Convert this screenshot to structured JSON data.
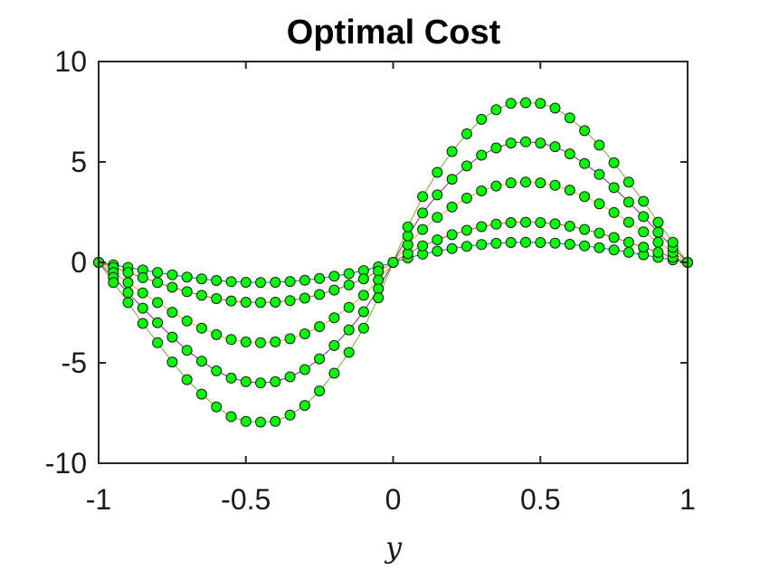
{
  "chart_data": {
    "type": "line",
    "title": "Optimal Cost",
    "xlabel": "y",
    "ylabel": "",
    "xlim": [
      -1,
      1
    ],
    "ylim": [
      -10,
      10
    ],
    "xticks": [
      -1,
      -0.5,
      0,
      0.5,
      1
    ],
    "xtick_labels": [
      "-1",
      "-0.5",
      "0",
      "0.5",
      "1"
    ],
    "yticks": [
      -10,
      -5,
      0,
      5,
      10
    ],
    "ytick_labels": [
      "-10",
      "-5",
      "0",
      "5",
      "10"
    ],
    "grid": false,
    "legend": false,
    "marker": "circle",
    "marker_fill": "#00ff00",
    "marker_edge": "#1a1a1a",
    "x": [
      -1,
      -0.95,
      -0.9,
      -0.85,
      -0.8,
      -0.75,
      -0.7,
      -0.65,
      -0.6,
      -0.55,
      -0.5,
      -0.45,
      -0.4,
      -0.35,
      -0.3,
      -0.25,
      -0.2,
      -0.15,
      -0.1,
      -0.05,
      0,
      0.05,
      0.1,
      0.15,
      0.2,
      0.25,
      0.3,
      0.35,
      0.4,
      0.45,
      0.5,
      0.55,
      0.6,
      0.65,
      0.7,
      0.75,
      0.8,
      0.85,
      0.9,
      0.95,
      1
    ],
    "series": [
      {
        "values": [
          0,
          -0.12,
          -0.25,
          -0.38,
          -0.5,
          -0.62,
          -0.73,
          -0.82,
          -0.9,
          -0.96,
          -0.99,
          -1.0,
          -0.99,
          -0.95,
          -0.89,
          -0.8,
          -0.69,
          -0.56,
          -0.41,
          -0.22,
          0,
          0.22,
          0.41,
          0.56,
          0.69,
          0.8,
          0.89,
          0.95,
          0.99,
          1.0,
          0.99,
          0.96,
          0.9,
          0.82,
          0.73,
          0.62,
          0.5,
          0.38,
          0.25,
          0.12,
          0
        ]
      },
      {
        "values": [
          0,
          -0.25,
          -0.5,
          -0.76,
          -1.0,
          -1.24,
          -1.46,
          -1.64,
          -1.8,
          -1.92,
          -1.98,
          -2.0,
          -1.98,
          -1.9,
          -1.78,
          -1.6,
          -1.38,
          -1.12,
          -0.82,
          -0.44,
          0,
          0.44,
          0.82,
          1.12,
          1.38,
          1.6,
          1.78,
          1.9,
          1.98,
          2.0,
          1.98,
          1.92,
          1.8,
          1.64,
          1.46,
          1.24,
          1.0,
          0.76,
          0.5,
          0.25,
          0
        ]
      },
      {
        "values": [
          0,
          -0.5,
          -1.0,
          -1.52,
          -2.0,
          -2.48,
          -2.92,
          -3.28,
          -3.6,
          -3.84,
          -3.96,
          -4.0,
          -3.96,
          -3.8,
          -3.56,
          -3.2,
          -2.76,
          -2.24,
          -1.64,
          -0.88,
          0,
          0.88,
          1.64,
          2.24,
          2.76,
          3.2,
          3.56,
          3.8,
          3.96,
          4.0,
          3.96,
          3.84,
          3.6,
          3.28,
          2.92,
          2.48,
          2.0,
          1.52,
          1.0,
          0.5,
          0
        ]
      },
      {
        "values": [
          0,
          -0.75,
          -1.5,
          -2.28,
          -3.0,
          -3.72,
          -4.38,
          -4.92,
          -5.4,
          -5.76,
          -5.94,
          -6.0,
          -5.94,
          -5.7,
          -5.34,
          -4.8,
          -4.14,
          -3.36,
          -2.46,
          -1.32,
          0,
          1.32,
          2.46,
          3.36,
          4.14,
          4.8,
          5.34,
          5.7,
          5.94,
          6.0,
          5.94,
          5.76,
          5.4,
          4.92,
          4.38,
          3.72,
          3.0,
          2.28,
          1.5,
          0.75,
          0
        ]
      },
      {
        "values": [
          0,
          -1.0,
          -2.0,
          -3.04,
          -4.0,
          -4.96,
          -5.84,
          -6.56,
          -7.2,
          -7.68,
          -7.92,
          -7.95,
          -7.92,
          -7.6,
          -7.12,
          -6.4,
          -5.52,
          -4.48,
          -3.28,
          -1.76,
          0,
          1.76,
          3.28,
          4.48,
          5.52,
          6.4,
          7.12,
          7.6,
          7.92,
          7.95,
          7.92,
          7.68,
          7.2,
          6.56,
          5.84,
          4.96,
          4.0,
          3.04,
          2.0,
          1.0,
          0
        ]
      }
    ]
  }
}
